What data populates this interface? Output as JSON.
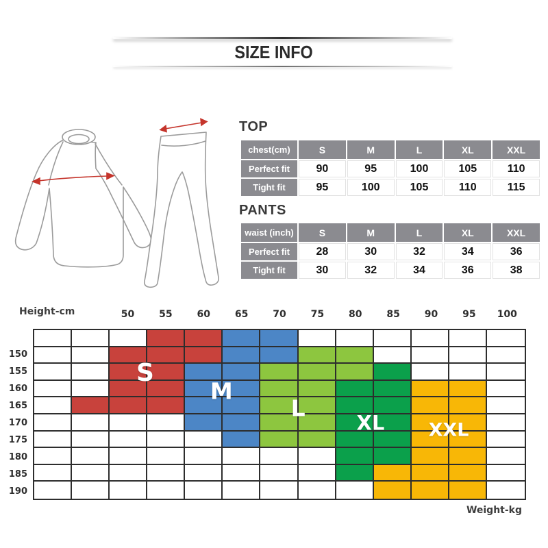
{
  "page": {
    "title": "SIZE INFO"
  },
  "top_section": {
    "heading": "TOP",
    "table": {
      "corner_label": "chest(cm)",
      "size_headers": [
        "S",
        "M",
        "L",
        "XL",
        "XXL"
      ],
      "rows": [
        {
          "label": "Perfect fit",
          "values": [
            "90",
            "95",
            "100",
            "105",
            "110"
          ]
        },
        {
          "label": "Tight fit",
          "values": [
            "95",
            "100",
            "105",
            "110",
            "115"
          ]
        }
      ]
    }
  },
  "pants_section": {
    "heading": "PANTS",
    "table": {
      "corner_label": "waist (inch)",
      "size_headers": [
        "S",
        "M",
        "L",
        "XL",
        "XXL"
      ],
      "rows": [
        {
          "label": "Perfect fit",
          "values": [
            "28",
            "30",
            "32",
            "34",
            "36"
          ]
        },
        {
          "label": "Tight fit",
          "values": [
            "30",
            "32",
            "34",
            "36",
            "38"
          ]
        }
      ]
    }
  },
  "illustrations": {
    "shirt_icon": "raglan-shirt-outline",
    "pants_icon": "leggings-outline",
    "measure_arrow_color": "#c5352c",
    "outline_color": "#9b9b9b"
  },
  "chart_data": {
    "type": "heatmap",
    "title": "Height vs Weight size chart",
    "y_axis_label": "Height-cm",
    "x_axis_label": "Weight-kg",
    "col_labels": [
      "",
      "",
      "50",
      "55",
      "60",
      "65",
      "70",
      "75",
      "80",
      "85",
      "90",
      "95",
      "100"
    ],
    "row_labels": [
      "",
      "150",
      "155",
      "160",
      "165",
      "170",
      "175",
      "180",
      "185",
      "190"
    ],
    "grid_line_color": "#2d2d2d",
    "sizes": [
      {
        "label": "S",
        "color": "#c8423c"
      },
      {
        "label": "M",
        "color": "#4c86c6"
      },
      {
        "label": "L",
        "color": "#8dc63f"
      },
      {
        "label": "XL",
        "color": "#0ba04b"
      },
      {
        "label": "XXL",
        "color": "#f8b706"
      }
    ],
    "cells": [
      [
        "",
        "",
        "",
        "S",
        "S",
        "M",
        "M",
        "",
        "",
        "",
        "",
        "",
        ""
      ],
      [
        "",
        "",
        "S",
        "S",
        "S",
        "M",
        "M",
        "L",
        "L",
        "",
        "",
        "",
        ""
      ],
      [
        "",
        "",
        "S",
        "S",
        "M",
        "M",
        "L",
        "L",
        "L",
        "XL",
        "",
        "",
        ""
      ],
      [
        "",
        "",
        "S",
        "S",
        "M",
        "M",
        "L",
        "L",
        "XL",
        "XL",
        "XXL",
        "XXL",
        ""
      ],
      [
        "",
        "S",
        "S",
        "S",
        "M",
        "M",
        "L",
        "L",
        "XL",
        "XL",
        "XXL",
        "XXL",
        ""
      ],
      [
        "",
        "",
        "",
        "",
        "M",
        "M",
        "L",
        "L",
        "XL",
        "XL",
        "XXL",
        "XXL",
        ""
      ],
      [
        "",
        "",
        "",
        "",
        "",
        "M",
        "L",
        "L",
        "XL",
        "XL",
        "XXL",
        "XXL",
        ""
      ],
      [
        "",
        "",
        "",
        "",
        "",
        "",
        "",
        "",
        "XL",
        "XL",
        "XXL",
        "XXL",
        ""
      ],
      [
        "",
        "",
        "",
        "",
        "",
        "",
        "",
        "",
        "XL",
        "XXL",
        "XXL",
        "XXL",
        ""
      ],
      [
        "",
        "",
        "",
        "",
        "",
        "",
        "",
        "",
        "",
        "XXL",
        "XXL",
        "XXL",
        ""
      ]
    ],
    "overlays": [
      {
        "label": "S",
        "col": 2.96,
        "row": 2.6
      },
      {
        "label": "M",
        "col": 4.97,
        "row": 3.62
      },
      {
        "label": "L",
        "col": 6.99,
        "row": 4.64
      },
      {
        "label": "XL",
        "col": 8.9,
        "row": 5.52
      },
      {
        "label": "XXL",
        "col": 10.96,
        "row": 5.9
      }
    ]
  }
}
